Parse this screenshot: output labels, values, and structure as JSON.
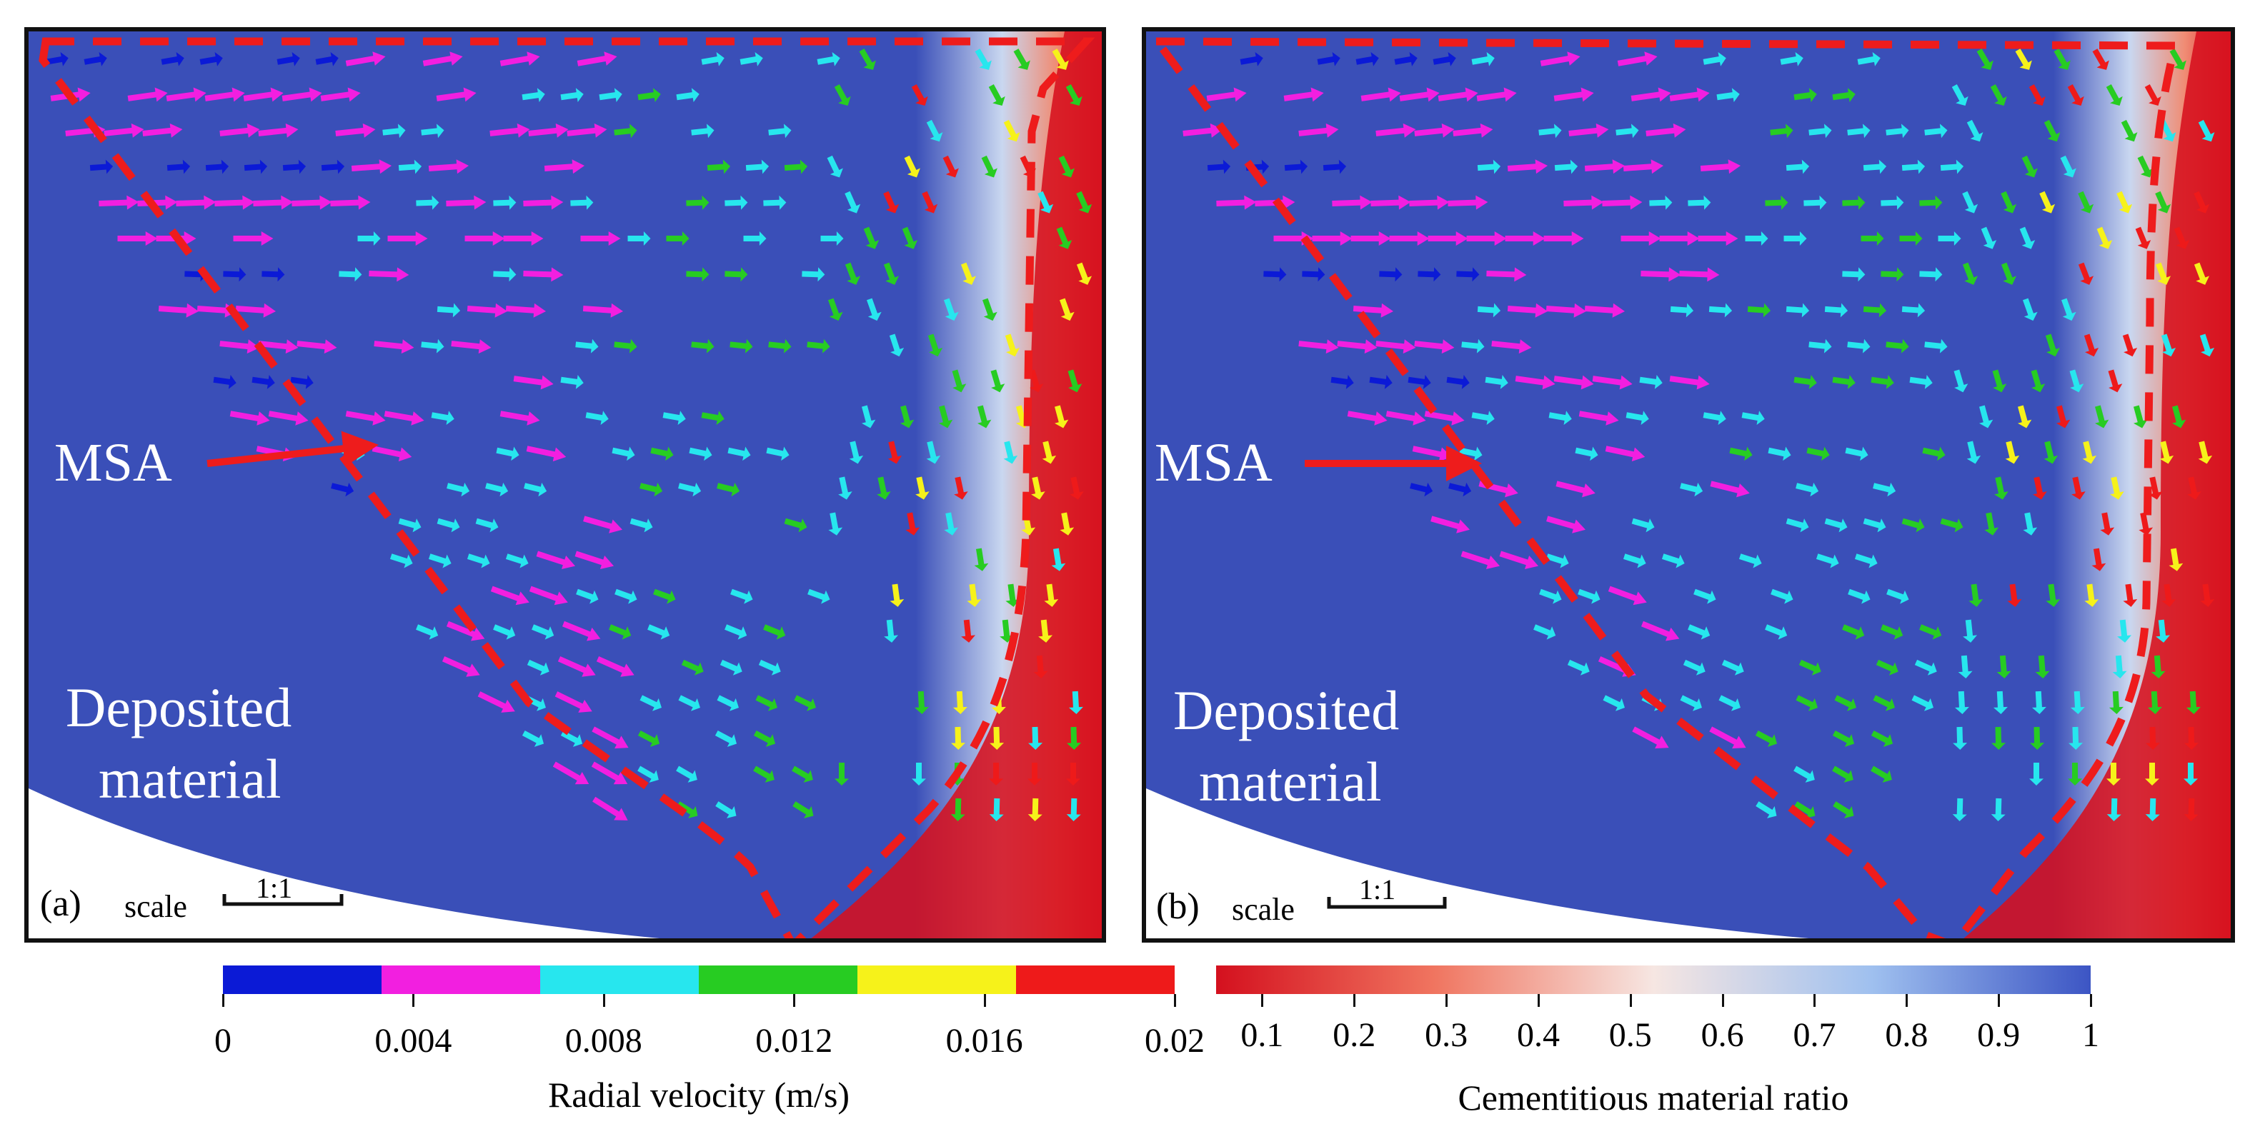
{
  "figure": {
    "panel_a": {
      "label": "MSA",
      "region_label_line1": "Deposited",
      "region_label_line2": "material",
      "sub_label": "(a)",
      "scale_word": "scale",
      "scale_ratio": "1:1"
    },
    "panel_b": {
      "label": "MSA",
      "region_label_line1": "Deposited",
      "region_label_line2": "material",
      "sub_label": "(b)",
      "scale_word": "scale",
      "scale_ratio": "1:1"
    }
  },
  "velocity_colorbar": {
    "title": "Radial velocity (m/s)",
    "ticks": [
      "0",
      "0.004",
      "0.008",
      "0.012",
      "0.016",
      "0.02"
    ],
    "colors": [
      "#0b1ad6",
      "#f21fe0",
      "#27e6ee",
      "#27cc22",
      "#f6f21a",
      "#ee1a1a"
    ]
  },
  "cement_colorbar": {
    "title": "Cementitious material ratio",
    "ticks": [
      "0.1",
      "0.2",
      "0.3",
      "0.4",
      "0.5",
      "0.6",
      "0.7",
      "0.8",
      "0.9",
      "1"
    ],
    "gradient": [
      "#d4101e",
      "#f07560",
      "#f6e6e2",
      "#9fc0ef",
      "#3c55c4"
    ]
  },
  "colors": {
    "fluid": "#3a4fb8",
    "cement_rich": "#d6101e",
    "boundary": "#ee1c1c"
  }
}
